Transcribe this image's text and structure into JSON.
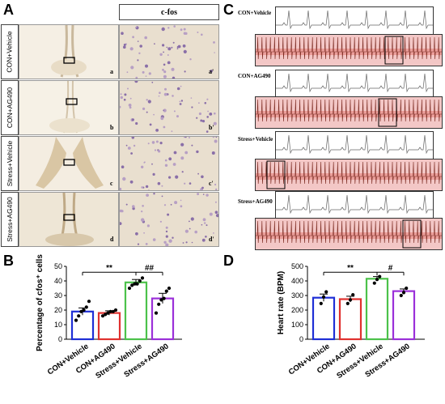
{
  "panels": {
    "A": "A",
    "B": "B",
    "C": "C",
    "D": "D"
  },
  "panel_a": {
    "header": "c-fos",
    "rows": [
      {
        "label": "CON+Vehicle",
        "left_sub": "a",
        "right_sub": "a'"
      },
      {
        "label": "CON+AG490",
        "left_sub": "b",
        "right_sub": "b'"
      },
      {
        "label": "Stress+Vehicle",
        "left_sub": "c",
        "right_sub": "c'"
      },
      {
        "label": "Stress+AG490",
        "left_sub": "d",
        "right_sub": "d'"
      }
    ]
  },
  "panel_c": {
    "rows": [
      "CON+Vehicle",
      "CON+AG490",
      "Stress+Vehicle",
      "Stress+AG490"
    ]
  },
  "colors": {
    "blue": "#1f2fd6",
    "red": "#e0312f",
    "green": "#4cc24a",
    "purple": "#9b30d9"
  },
  "chart_data": [
    {
      "type": "bar",
      "panel": "B",
      "categories": [
        "CON+Vehicle",
        "CON+AG490",
        "Stress+Vehicle",
        "Stress+AG490"
      ],
      "values": [
        19,
        18,
        39,
        28
      ],
      "errors": [
        2.5,
        1.5,
        2,
        3.5
      ],
      "points": [
        [
          13,
          16,
          19,
          20,
          22,
          26
        ],
        [
          16,
          17,
          18,
          19,
          19,
          20
        ],
        [
          35,
          37,
          38,
          38,
          40,
          42
        ],
        [
          18,
          24,
          27,
          28,
          33,
          35
        ]
      ],
      "ylabel": "Percentage of cfos⁺ cells",
      "ylim": [
        0,
        50
      ],
      "yticks": [
        0,
        10,
        20,
        30,
        40,
        50
      ],
      "significance": [
        {
          "label": "**"
        },
        {
          "label": "##"
        }
      ]
    },
    {
      "type": "bar",
      "panel": "D",
      "categories": [
        "CON+Vehicle",
        "CON+AG490",
        "Stress+Vehicle",
        "Stress+AG490"
      ],
      "values": [
        285,
        275,
        415,
        330
      ],
      "errors": [
        25,
        20,
        15,
        15
      ],
      "points": [
        [
          245,
          290,
          325
        ],
        [
          245,
          270,
          305
        ],
        [
          385,
          410,
          430
        ],
        [
          300,
          320,
          350
        ]
      ],
      "ylabel": "Heart rate (BPM)",
      "ylim": [
        0,
        500
      ],
      "yticks": [
        0,
        100,
        200,
        300,
        400,
        500
      ],
      "significance": [
        {
          "label": "**"
        },
        {
          "label": "#"
        }
      ]
    }
  ]
}
